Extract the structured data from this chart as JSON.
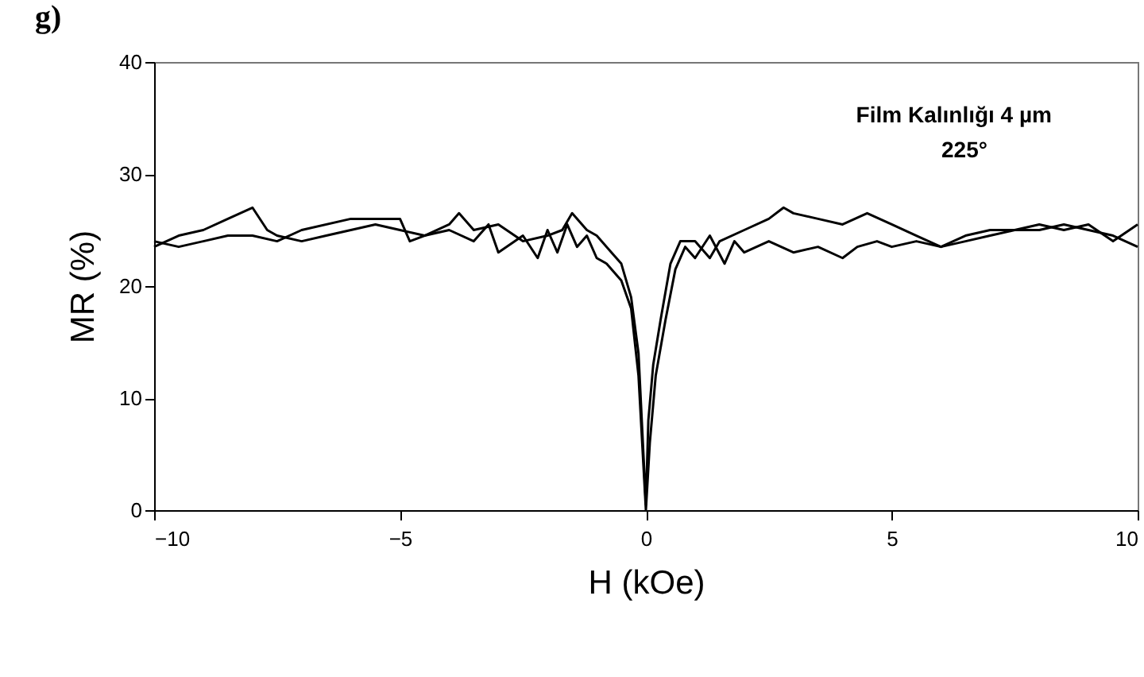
{
  "chart_data": {
    "type": "line",
    "xlabel": "H (kOe)",
    "ylabel": "MR (%)",
    "xlim": [
      -10,
      10
    ],
    "xticks": [
      -10,
      -5,
      0,
      5,
      10
    ],
    "ylim": [
      0,
      40
    ],
    "yticks": [
      0,
      10,
      20,
      30,
      40
    ],
    "grid": false,
    "legend": false,
    "marker": "none",
    "line_style": "solid",
    "annotations": [
      "g)",
      "Film Kalınlığı 4 µm",
      "225°"
    ],
    "series": [
      {
        "color": "#000000",
        "x": [
          -10,
          -9.5,
          -9,
          -8.5,
          -8,
          -7.7,
          -7.5,
          -7,
          -6.5,
          -6,
          -5.5,
          -5,
          -4.5,
          -4,
          -3.8,
          -3.5,
          -3,
          -2.5,
          -2,
          -1.7,
          -1.5,
          -1.2,
          -1,
          -0.7,
          -0.5,
          -0.3,
          -0.15,
          -0.05,
          0,
          0.05,
          0.15,
          0.3,
          0.5,
          0.7,
          1,
          1.3,
          1.5,
          2,
          2.5,
          2.8,
          3,
          3.5,
          4,
          4.5,
          5,
          5.5,
          6,
          6.5,
          7,
          7.5,
          8,
          8.5,
          9,
          9.5,
          10
        ],
        "values": [
          23.5,
          24.5,
          25,
          26,
          27,
          25,
          24.5,
          24,
          24.5,
          25,
          25.5,
          25,
          24.5,
          25.5,
          26.5,
          25,
          25.5,
          24,
          24.5,
          25,
          26.5,
          25,
          24.5,
          23,
          22,
          19,
          14,
          5,
          0.5,
          8,
          13,
          17,
          22,
          24,
          24,
          22.5,
          24,
          25,
          26,
          27,
          26.5,
          26,
          25.5,
          26.5,
          25.5,
          24.5,
          23.5,
          24,
          24.5,
          25,
          25.5,
          25,
          25.5,
          24,
          25.5
        ]
      },
      {
        "color": "#000000",
        "x": [
          -10,
          -9.5,
          -9,
          -8.5,
          -8,
          -7.5,
          -7,
          -6,
          -5.5,
          -5,
          -4.8,
          -4.5,
          -4,
          -3.5,
          -3.2,
          -3,
          -2.5,
          -2.2,
          -2,
          -1.8,
          -1.6,
          -1.4,
          -1.2,
          -1,
          -0.8,
          -0.5,
          -0.3,
          -0.15,
          -0.05,
          0,
          0.08,
          0.2,
          0.4,
          0.6,
          0.8,
          1,
          1.3,
          1.6,
          1.8,
          2,
          2.5,
          3,
          3.5,
          4,
          4.3,
          4.7,
          5,
          5.5,
          6,
          6.5,
          7,
          8,
          8.5,
          9,
          9.5,
          10
        ],
        "values": [
          24,
          23.5,
          24,
          24.5,
          24.5,
          24,
          25,
          26,
          26,
          26,
          24,
          24.5,
          25,
          24,
          25.5,
          23,
          24.5,
          22.5,
          25,
          23,
          25.5,
          23.5,
          24.5,
          22.5,
          22,
          20.5,
          18,
          12,
          4,
          0,
          6,
          12,
          17,
          21.5,
          23.5,
          22.5,
          24.5,
          22,
          24,
          23,
          24,
          23,
          23.5,
          22.5,
          23.5,
          24,
          23.5,
          24,
          23.5,
          24.5,
          25,
          25,
          25.5,
          25,
          24.5,
          23.5
        ]
      }
    ]
  }
}
